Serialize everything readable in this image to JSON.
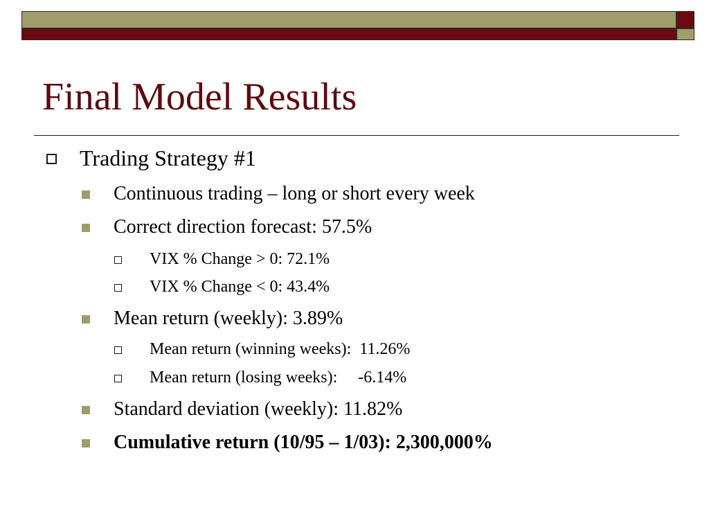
{
  "slide": {
    "title": "Final Model Results",
    "colors": {
      "title": "#5c0a0f",
      "olive": "#a09c6b",
      "maroon": "#6b0a10"
    },
    "bullets": [
      {
        "level": 1,
        "bullet": "hollow-square-icon",
        "text": "Trading Strategy #1"
      },
      {
        "level": 2,
        "bullet": "filled-square-icon",
        "text": "Continuous trading – long or short every week"
      },
      {
        "level": 2,
        "bullet": "filled-square-icon",
        "text": "Correct direction forecast: 57.5%"
      },
      {
        "level": 3,
        "bullet": "hollow-square-icon",
        "text": "VIX % Change > 0:  72.1%"
      },
      {
        "level": 3,
        "bullet": "hollow-square-icon",
        "text": "VIX % Change < 0:  43.4%"
      },
      {
        "level": 2,
        "bullet": "filled-square-icon",
        "text": "Mean return (weekly): 3.89%"
      },
      {
        "level": 3,
        "bullet": "hollow-square-icon",
        "text": "Mean return (winning weeks):  11.26%"
      },
      {
        "level": 3,
        "bullet": "hollow-square-icon",
        "text": "Mean return (losing weeks):     -6.14%"
      },
      {
        "level": 2,
        "bullet": "filled-square-icon",
        "text": "Standard deviation (weekly): 11.82%"
      },
      {
        "level": 2,
        "bullet": "filled-square-icon",
        "text": "Cumulative return (10/95 – 1/03): 2,300,000%",
        "bold": true
      }
    ]
  }
}
